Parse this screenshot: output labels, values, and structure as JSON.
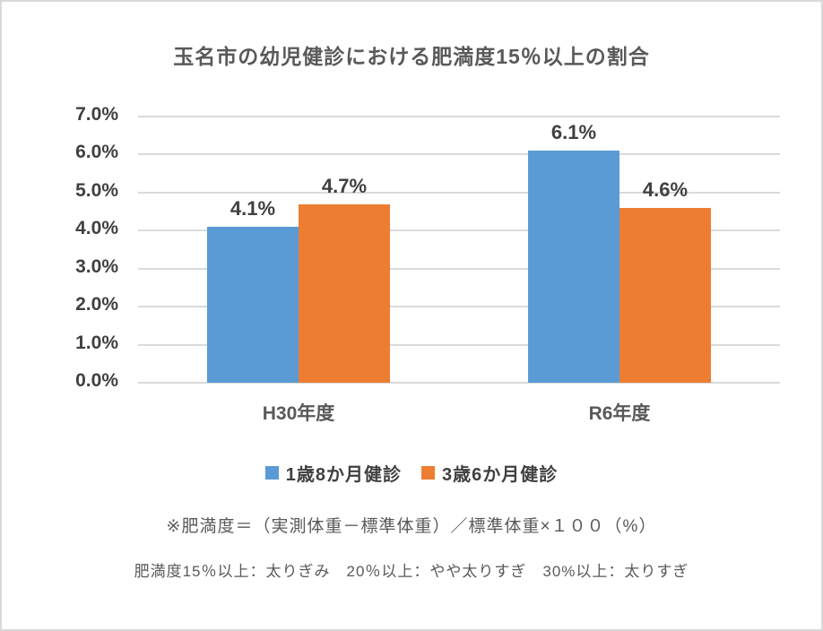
{
  "chart_data": {
    "type": "bar",
    "title": "玉名市の幼児健診における肥満度15％以上の割合",
    "categories": [
      "H30年度",
      "R6年度"
    ],
    "series": [
      {
        "name": "1歳8か月健診",
        "color": "#5b9bd5",
        "values": [
          4.1,
          6.1
        ],
        "data_labels": [
          "4.1%",
          "6.1%"
        ]
      },
      {
        "name": "3歳6か月健診",
        "color": "#ed7d31",
        "values": [
          4.7,
          4.6
        ],
        "data_labels": [
          "4.7%",
          "4.6%"
        ]
      }
    ],
    "ylabel": "",
    "xlabel": "",
    "ylim": [
      0,
      7
    ],
    "yticks": [
      "7.0%",
      "6.0%",
      "5.0%",
      "4.0%",
      "3.0%",
      "2.0%",
      "1.0%",
      "0.0%"
    ],
    "grid": true,
    "legend_position": "bottom"
  },
  "footnotes": {
    "formula": "※肥満度＝（実測体重－標準体重）／標準体重×１００（%）",
    "criteria": "肥満度15％以上：太りぎみ　20％以上：やや太りすぎ　30%以上：太りすぎ"
  },
  "colors": {
    "series1": "#5b9bd5",
    "series2": "#ed7d31",
    "gridline": "#dadada",
    "title_text": "#595959",
    "axis_text": "#404040",
    "frame_border": "#d9d9d9"
  }
}
